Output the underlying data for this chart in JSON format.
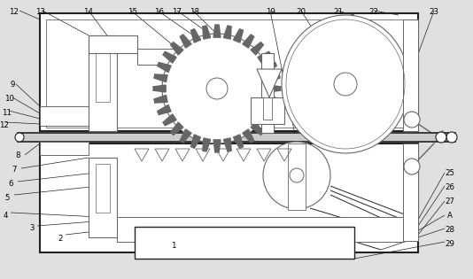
{
  "bg_color": "#e0e0e0",
  "line_color": "#666666",
  "dark_line": "#222222",
  "fig_width": 5.34,
  "fig_height": 3.15,
  "dpi": 100,
  "xlim": [
    0,
    534
  ],
  "ylim": [
    0,
    315
  ]
}
